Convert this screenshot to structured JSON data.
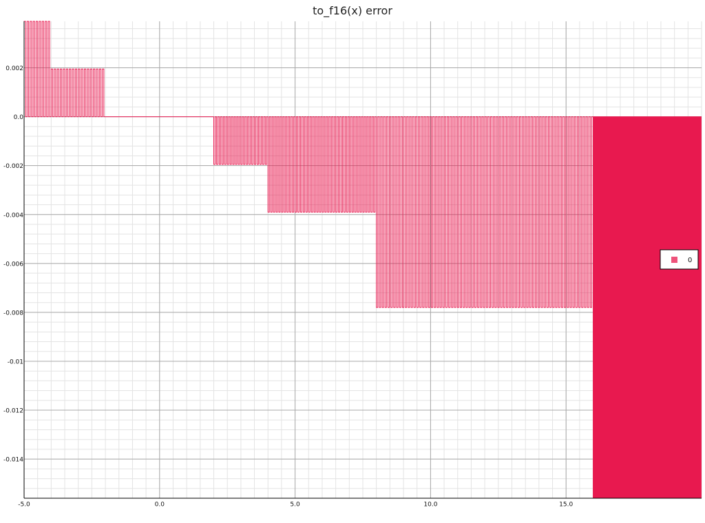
{
  "chart_data": {
    "type": "line",
    "title": "to_f16(x) error",
    "xlabel": "",
    "ylabel": "",
    "xlim": [
      -5.0,
      20.0
    ],
    "ylim": [
      -0.0156,
      0.0039
    ],
    "x_ticks": [
      -5.0,
      0.0,
      5.0,
      10.0,
      15.0
    ],
    "x_tick_labels": [
      "-5.0",
      "0.0",
      "5.0",
      "10.0",
      "15.0"
    ],
    "y_ticks": [
      0.002,
      0.0,
      -0.002,
      -0.004,
      -0.006,
      -0.008,
      -0.01,
      -0.012,
      -0.014
    ],
    "y_tick_labels": [
      "0.002",
      "0.0",
      "-0.002",
      "-0.004",
      "-0.006",
      "-0.008",
      "-0.01",
      "-0.012",
      "-0.014"
    ],
    "grid": true,
    "legend_position": "right",
    "series": [
      {
        "name": "0",
        "color": "#e8194f",
        "pattern": "square-wave error between 0 and a band amplitude",
        "segments": [
          {
            "x_start": -5.0,
            "x_end": -4.0,
            "amplitude": 0.0039,
            "cycles": 9
          },
          {
            "x_start": -4.0,
            "x_end": -2.0,
            "amplitude": 0.00195,
            "cycles": 18
          },
          {
            "x_start": -2.0,
            "x_end": 2.0,
            "amplitude": 0.0,
            "cycles": 0
          },
          {
            "x_start": 2.0,
            "x_end": 4.0,
            "amplitude": -0.00195,
            "cycles": 20
          },
          {
            "x_start": 4.0,
            "x_end": 8.0,
            "amplitude": -0.0039,
            "cycles": 40
          },
          {
            "x_start": 8.0,
            "x_end": 16.0,
            "amplitude": -0.0078,
            "cycles": 75
          },
          {
            "x_start": 16.0,
            "x_end": 20.0,
            "amplitude": -0.0156,
            "cycles": 150
          }
        ]
      }
    ]
  }
}
